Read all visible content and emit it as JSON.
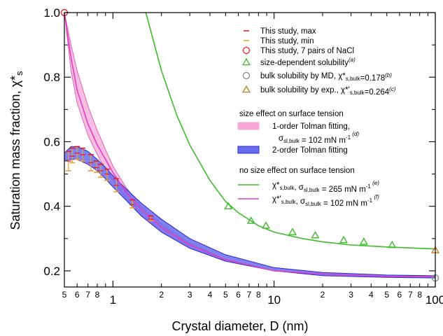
{
  "chart_data": {
    "type": "line",
    "title": "",
    "xlabel": "Crystal diameter, D (nm)",
    "ylabel": "Saturation mass fraction, χ*s",
    "x_scale": "log",
    "xlim": [
      0.5,
      100
    ],
    "ylim": [
      0.15,
      1.0
    ],
    "grid": false,
    "legend_position": "right",
    "x_major_ticks": [
      {
        "value": 1,
        "label": "1"
      },
      {
        "value": 10,
        "label": "10"
      },
      {
        "value": 100,
        "label": "100"
      }
    ],
    "x_minor_ticks": [
      {
        "value": 0.5,
        "label": "5"
      },
      {
        "value": 0.6,
        "label": "6"
      },
      {
        "value": 0.7,
        "label": "7"
      },
      {
        "value": 0.8,
        "label": "8"
      },
      {
        "value": 0.9,
        "label": ""
      },
      {
        "value": 2,
        "label": "2"
      },
      {
        "value": 3,
        "label": "3"
      },
      {
        "value": 4,
        "label": "4"
      },
      {
        "value": 5,
        "label": "5"
      },
      {
        "value": 6,
        "label": "6"
      },
      {
        "value": 7,
        "label": "7"
      },
      {
        "value": 8,
        "label": "8"
      },
      {
        "value": 9,
        "label": ""
      },
      {
        "value": 20,
        "label": "2"
      },
      {
        "value": 30,
        "label": "3"
      },
      {
        "value": 40,
        "label": "4"
      },
      {
        "value": 50,
        "label": "5"
      },
      {
        "value": 60,
        "label": "6"
      },
      {
        "value": 70,
        "label": "7"
      },
      {
        "value": 80,
        "label": "8"
      },
      {
        "value": 90,
        "label": ""
      }
    ],
    "y_ticks": [
      {
        "value": 0.2,
        "label": "0.2"
      },
      {
        "value": 0.4,
        "label": "0.4"
      },
      {
        "value": 0.6,
        "label": "0.6"
      },
      {
        "value": 0.8,
        "label": "0.8"
      },
      {
        "value": 1.0,
        "label": "1.0"
      }
    ],
    "series": [
      {
        "name": "This study, max / This study, min",
        "kind": "error_bars",
        "color_max": "#e8202a",
        "color_min": "#f0a030",
        "x": [
          0.53,
          0.56,
          0.6,
          0.65,
          0.73,
          0.79,
          0.84,
          0.92,
          1.05,
          1.32,
          1.72
        ],
        "y": [
          0.54,
          0.555,
          0.565,
          0.56,
          0.535,
          0.52,
          0.51,
          0.5,
          0.465,
          0.405,
          0.36
        ],
        "ymax": [
          0.57,
          0.58,
          0.585,
          0.58,
          0.56,
          0.54,
          0.53,
          0.515,
          0.485,
          0.42,
          0.37
        ],
        "ymin": [
          0.51,
          0.535,
          0.545,
          0.54,
          0.51,
          0.505,
          0.49,
          0.48,
          0.445,
          0.395,
          0.355
        ]
      },
      {
        "name": "This study, 7 pairs of NaCl",
        "kind": "marker",
        "marker": "circle",
        "color": "#e8202a",
        "x": [
          0.5
        ],
        "y": [
          1.0
        ]
      },
      {
        "name": "size-dependent solubility",
        "superscript": "(a)",
        "kind": "marker",
        "marker": "triangle",
        "color": "#3dbb2a",
        "x": [
          5.2,
          7.2,
          8.9,
          13,
          18,
          27,
          36,
          54
        ],
        "y": [
          0.4,
          0.355,
          0.34,
          0.32,
          0.31,
          0.295,
          0.29,
          0.28
        ]
      },
      {
        "name": "bulk solubility by MD, χ*s,bulk=0.178",
        "superscript": "(b)",
        "kind": "marker",
        "marker": "circle",
        "color": "#888888",
        "x": [
          100
        ],
        "y": [
          0.178
        ]
      },
      {
        "name": "bulk solubility by exp., χ*'s,bulk=0.264",
        "superscript": "(c)",
        "kind": "marker",
        "marker": "triangle",
        "color": "#c07820",
        "x": [
          100
        ],
        "y": [
          0.264
        ]
      },
      {
        "name": "1-order Tolman fitting, σsl,bulk = 102 mN m-1",
        "superscript": "(d)",
        "kind": "band",
        "color": "#f7a8d8",
        "x": [
          0.5,
          0.55,
          0.6,
          0.7,
          0.8,
          0.9,
          1.0,
          1.2,
          1.5,
          2.0,
          3.0,
          5.0
        ],
        "y_upper": [
          1.0,
          0.9,
          0.82,
          0.71,
          0.635,
          0.575,
          0.525,
          0.46,
          0.4,
          0.345,
          0.285,
          0.235
        ],
        "y_lower": [
          1.0,
          0.82,
          0.72,
          0.62,
          0.56,
          0.515,
          0.48,
          0.425,
          0.37,
          0.32,
          0.27,
          0.23
        ]
      },
      {
        "name": "2-order Tolman fitting",
        "kind": "band",
        "color": "#6a6cf0",
        "x": [
          0.5,
          0.55,
          0.6,
          0.7,
          0.8,
          0.9,
          1.0,
          1.2,
          1.5,
          2.0,
          3.0,
          5.0,
          10,
          20,
          50,
          100
        ],
        "y_upper": [
          0.565,
          0.585,
          0.585,
          0.57,
          0.545,
          0.52,
          0.495,
          0.455,
          0.41,
          0.36,
          0.3,
          0.25,
          0.21,
          0.195,
          0.187,
          0.185
        ],
        "y_lower": [
          0.54,
          0.545,
          0.545,
          0.53,
          0.51,
          0.485,
          0.46,
          0.42,
          0.37,
          0.32,
          0.27,
          0.23,
          0.2,
          0.185,
          0.18,
          0.178
        ]
      },
      {
        "name": "χ*s,bulk, σsl,bulk = 265 mN m-1",
        "superscript": "(e)",
        "kind": "line",
        "color": "#3dbb2a",
        "x": [
          1.6,
          2.0,
          2.5,
          3.0,
          4.0,
          5.0,
          6.0,
          8.0,
          10,
          15,
          20,
          30,
          50,
          70,
          100
        ],
        "y": [
          1.0,
          0.82,
          0.68,
          0.59,
          0.48,
          0.415,
          0.38,
          0.34,
          0.32,
          0.3,
          0.29,
          0.28,
          0.274,
          0.271,
          0.268
        ]
      },
      {
        "name": "χ*'s,bulk, σsl,bulk = 102 mN m-1",
        "superscript": "(f)",
        "kind": "line",
        "color": "#e040c0",
        "x": [
          0.5,
          0.55,
          0.6,
          0.7,
          0.8,
          0.9,
          1.0,
          1.2,
          1.5,
          2.0,
          3.0,
          5.0,
          10,
          20,
          50,
          100
        ],
        "y": [
          1.0,
          0.86,
          0.76,
          0.655,
          0.59,
          0.545,
          0.505,
          0.445,
          0.39,
          0.335,
          0.28,
          0.235,
          0.2,
          0.19,
          0.183,
          0.182
        ]
      }
    ],
    "legend_headings": [
      "size effect on surface tension",
      "no size effect on surface tension"
    ],
    "legend": [
      {
        "id": "max",
        "sym": "dash",
        "color": "#e8202a",
        "parts": [
          [
            "This study, max",
            ""
          ]
        ]
      },
      {
        "id": "min",
        "sym": "dash",
        "color": "#f0a030",
        "parts": [
          [
            "This study, min",
            ""
          ]
        ]
      },
      {
        "id": "pairs",
        "sym": "circle",
        "color": "#e8202a",
        "parts": [
          [
            "This study, 7 pairs of NaCl",
            ""
          ]
        ]
      },
      {
        "id": "size-dep",
        "sym": "triangle",
        "color": "#3dbb2a",
        "parts": [
          [
            "size-dependent solubility",
            ""
          ],
          [
            "(a)",
            "sup"
          ]
        ]
      },
      {
        "id": "bulk-md",
        "sym": "circle",
        "color": "#888888",
        "parts": [
          [
            "bulk solubility by MD, χ*",
            ""
          ],
          [
            "s,bulk",
            "sub"
          ],
          [
            "=0.178",
            ""
          ],
          [
            "(b)",
            "sup"
          ]
        ]
      },
      {
        "id": "bulk-exp",
        "sym": "triangle",
        "color": "#c07820",
        "parts": [
          [
            "bulk solubility by exp., χ*'",
            ""
          ],
          [
            "s,bulk",
            "sub"
          ],
          [
            "=0.264",
            ""
          ],
          [
            "(c)",
            "sup"
          ]
        ]
      },
      {
        "id": "heading-size",
        "sym": "none",
        "color": "",
        "parts": [
          [
            "size effect on surface tension",
            ""
          ]
        ]
      },
      {
        "id": "tolman1",
        "sym": "band",
        "color": "#f7a8d8",
        "parts": [
          [
            "1-order Tolman fitting,",
            ""
          ]
        ]
      },
      {
        "id": "tolman1b",
        "sym": "none",
        "color": "",
        "parts": [
          [
            "σ",
            ""
          ],
          [
            "sl,bulk",
            "sub"
          ],
          [
            " = 102 mN m",
            ""
          ],
          [
            "-1",
            "sup"
          ],
          [
            " (d)",
            "sup"
          ]
        ]
      },
      {
        "id": "tolman2",
        "sym": "band",
        "color": "#6a6cf0",
        "parts": [
          [
            "2-order Tolman fitting",
            ""
          ]
        ]
      },
      {
        "id": "heading-nosize",
        "sym": "none",
        "color": "",
        "parts": [
          [
            "no size effect on surface tension",
            ""
          ]
        ]
      },
      {
        "id": "line-e",
        "sym": "line",
        "color": "#3dbb2a",
        "parts": [
          [
            "χ*",
            ""
          ],
          [
            "s,bulk",
            "sub"
          ],
          [
            ", σ",
            ""
          ],
          [
            "sl,bulk",
            "sub"
          ],
          [
            " = 265 mN m",
            ""
          ],
          [
            "-1",
            "sup"
          ],
          [
            " (e)",
            "sup"
          ]
        ]
      },
      {
        "id": "line-f",
        "sym": "line",
        "color": "#e040c0",
        "parts": [
          [
            "χ*'",
            ""
          ],
          [
            "s,bulk",
            "sub"
          ],
          [
            ", σ",
            ""
          ],
          [
            "sl,bulk",
            "sub"
          ],
          [
            " = 102 mN m",
            ""
          ],
          [
            "-1",
            "sup"
          ],
          [
            " (f)",
            "sup"
          ]
        ]
      }
    ]
  }
}
